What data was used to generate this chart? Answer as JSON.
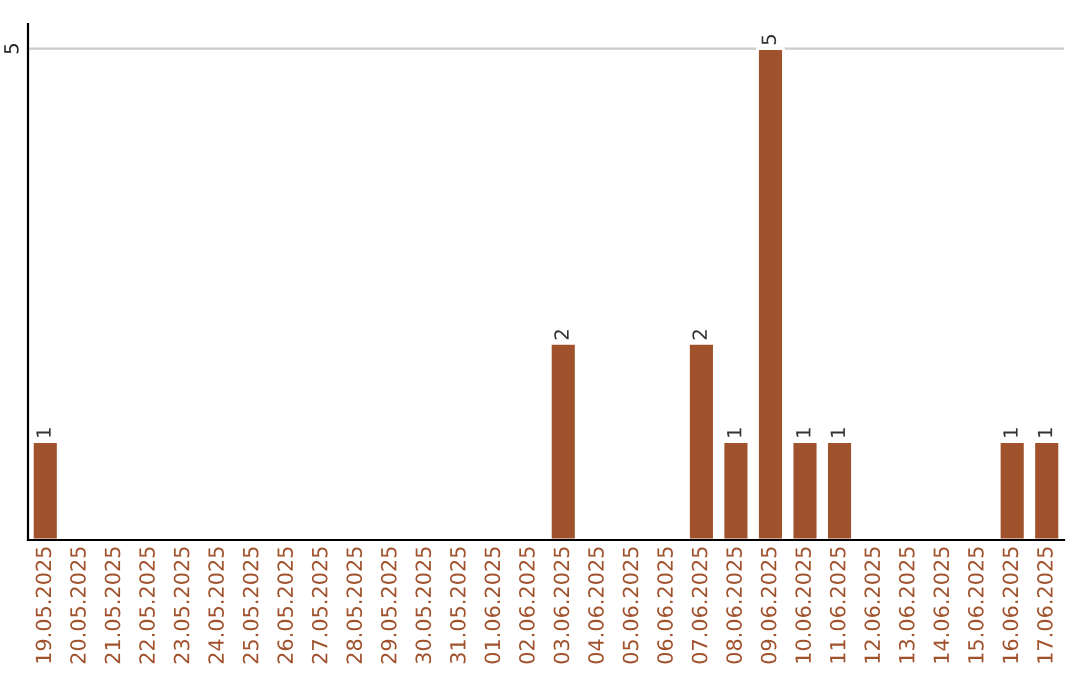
{
  "chart_data": {
    "type": "bar",
    "categories": [
      "19.05.2025",
      "20.05.2025",
      "21.05.2025",
      "22.05.2025",
      "23.05.2025",
      "24.05.2025",
      "25.05.2025",
      "26.05.2025",
      "27.05.2025",
      "28.05.2025",
      "29.05.2025",
      "30.05.2025",
      "31.05.2025",
      "01.06.2025",
      "02.06.2025",
      "03.06.2025",
      "04.06.2025",
      "05.06.2025",
      "06.06.2025",
      "07.06.2025",
      "08.06.2025",
      "09.06.2025",
      "10.06.2025",
      "11.06.2025",
      "12.06.2025",
      "13.06.2025",
      "14.06.2025",
      "15.06.2025",
      "16.06.2025",
      "17.06.2025"
    ],
    "values": [
      1,
      0,
      0,
      0,
      0,
      0,
      0,
      0,
      0,
      0,
      0,
      0,
      0,
      0,
      0,
      2,
      0,
      0,
      0,
      2,
      1,
      5,
      1,
      1,
      0,
      0,
      0,
      0,
      1,
      1
    ],
    "value_labels": [
      "1",
      null,
      null,
      null,
      null,
      null,
      null,
      null,
      null,
      null,
      null,
      null,
      null,
      null,
      null,
      "2",
      null,
      null,
      null,
      "2",
      "1",
      "5",
      "1",
      "1",
      null,
      null,
      null,
      null,
      "1",
      "1"
    ],
    "color": "#a0522d",
    "ylim": [
      0,
      5.25
    ],
    "yticks": [
      5
    ],
    "grid": "y"
  }
}
